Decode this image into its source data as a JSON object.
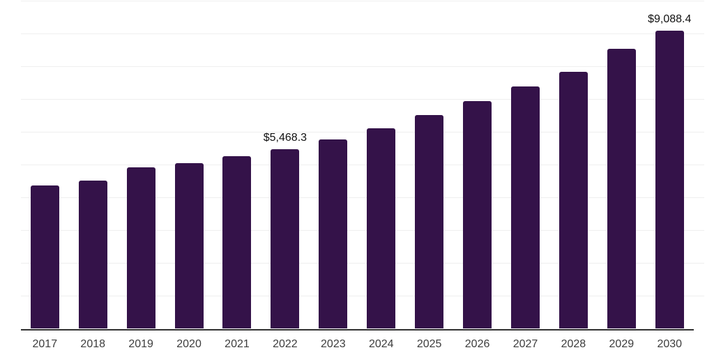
{
  "chart_data": {
    "type": "bar",
    "title": "",
    "xlabel": "",
    "ylabel": "",
    "categories": [
      "2017",
      "2018",
      "2019",
      "2020",
      "2021",
      "2022",
      "2023",
      "2024",
      "2025",
      "2026",
      "2027",
      "2028",
      "2029",
      "2030"
    ],
    "values": [
      4360,
      4510,
      4920,
      5045,
      5255,
      5468.3,
      5765,
      6105,
      6505,
      6930,
      7390,
      7825,
      8530,
      9088.4
    ],
    "value_labels": [
      {
        "category": "2022",
        "text": "$5,468.3"
      },
      {
        "category": "2030",
        "text": "$9,088.4"
      }
    ],
    "ylim": [
      0,
      10000
    ],
    "gridline_step": 1000,
    "grid": "horizontal",
    "legend_position": "none",
    "colors": {
      "bar": "#341249",
      "gridline": "#efefef",
      "axis_line": "#2f2f2f",
      "tick_label": "#3d3d3d",
      "value_label": "#111111",
      "background": "#ffffff"
    }
  }
}
